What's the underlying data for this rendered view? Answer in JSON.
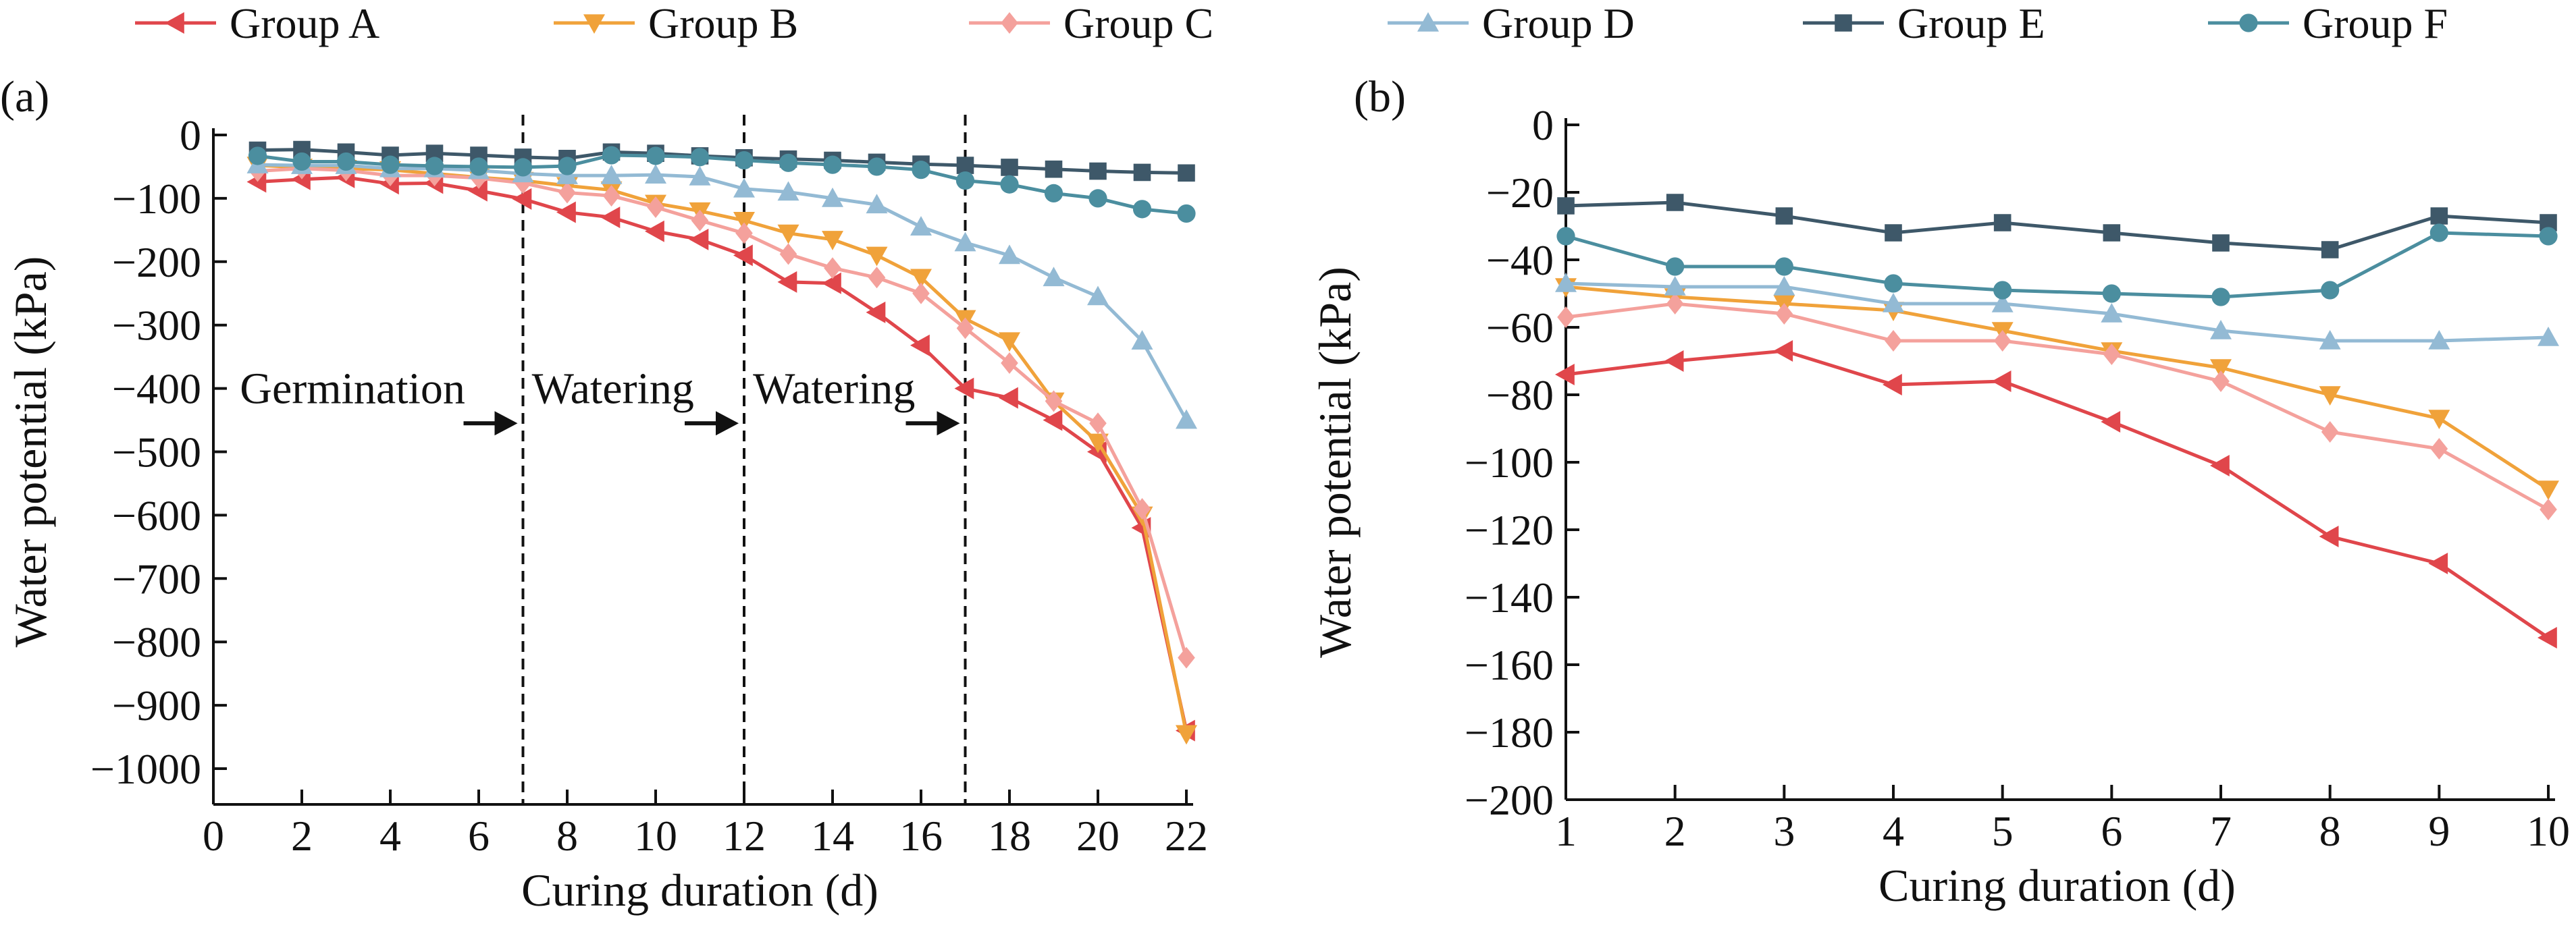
{
  "legend": {
    "position": "top",
    "entries": [
      {
        "name": "Group A",
        "color": "#e0464b",
        "marker": "triangle-left"
      },
      {
        "name": "Group B",
        "color": "#f0a23a",
        "marker": "triangle-down"
      },
      {
        "name": "Group C",
        "color": "#f4a19c",
        "marker": "diamond"
      },
      {
        "name": "Group D",
        "color": "#93bad4",
        "marker": "triangle-up"
      },
      {
        "name": "Group E",
        "color": "#3e5869",
        "marker": "square"
      },
      {
        "name": "Group F",
        "color": "#4b8e9f",
        "marker": "circle"
      }
    ]
  },
  "chart_data": [
    {
      "type": "line",
      "panel_label": "(a)",
      "xlabel": "Curing duration (d)",
      "ylabel": "Water potential (kPa)",
      "xlim": [
        0,
        22
      ],
      "ylim": [
        -1000,
        0
      ],
      "xticks": [
        0,
        2,
        4,
        6,
        8,
        10,
        12,
        14,
        16,
        18,
        20,
        22
      ],
      "yticks": [
        0,
        -100,
        -200,
        -300,
        -400,
        -500,
        -600,
        -700,
        -800,
        -900,
        -1000
      ],
      "grid": false,
      "x": [
        1,
        2,
        3,
        4,
        5,
        6,
        7,
        8,
        9,
        10,
        11,
        12,
        13,
        14,
        15,
        16,
        17,
        18,
        19,
        20,
        21,
        22
      ],
      "series": [
        {
          "name": "Group A",
          "values": [
            -74,
            -70,
            -67,
            -77,
            -76,
            -88,
            -101,
            -122,
            -130,
            -152,
            -165,
            -190,
            -232,
            -234,
            -280,
            -332,
            -400,
            -415,
            -450,
            -500,
            -620,
            -940
          ]
        },
        {
          "name": "Group B",
          "values": [
            -48,
            -51,
            -53,
            -55,
            -61,
            -67,
            -72,
            -80,
            -87,
            -108,
            -120,
            -135,
            -155,
            -165,
            -190,
            -225,
            -290,
            -325,
            -420,
            -485,
            -600,
            -945
          ]
        },
        {
          "name": "Group C",
          "values": [
            -57,
            -53,
            -56,
            -64,
            -64,
            -68,
            -76,
            -91,
            -96,
            -114,
            -135,
            -155,
            -188,
            -210,
            -225,
            -250,
            -305,
            -360,
            -420,
            -455,
            -590,
            -825
          ]
        },
        {
          "name": "Group D",
          "values": [
            -47,
            -48,
            -48,
            -53,
            -53,
            -56,
            -61,
            -64,
            -64,
            -63,
            -66,
            -85,
            -90,
            -100,
            -110,
            -145,
            -170,
            -190,
            -225,
            -255,
            -325,
            -450
          ]
        },
        {
          "name": "Group E",
          "values": [
            -24,
            -23,
            -27,
            -32,
            -29,
            -32,
            -35,
            -37,
            -27,
            -29,
            -33,
            -36,
            -38,
            -40,
            -43,
            -46,
            -48,
            -51,
            -54,
            -57,
            -59,
            -60
          ]
        },
        {
          "name": "Group F",
          "values": [
            -33,
            -42,
            -42,
            -47,
            -49,
            -50,
            -51,
            -49,
            -32,
            -33,
            -35,
            -40,
            -44,
            -47,
            -50,
            -55,
            -72,
            -78,
            -92,
            -100,
            -117,
            -124
          ]
        }
      ],
      "annotations": [
        {
          "text": "Germination",
          "x": 7
        },
        {
          "text": "Watering",
          "x": 12
        },
        {
          "text": "Watering",
          "x": 17
        }
      ],
      "vertical_dashed_lines": [
        7,
        12,
        17
      ]
    },
    {
      "type": "line",
      "panel_label": "(b)",
      "xlabel": "Curing duration (d)",
      "ylabel": "Water potential (kPa)",
      "xlim": [
        1,
        10
      ],
      "ylim": [
        -200,
        0
      ],
      "xticks": [
        1,
        2,
        3,
        4,
        5,
        6,
        7,
        8,
        9,
        10
      ],
      "yticks": [
        0,
        -20,
        -40,
        -60,
        -80,
        -100,
        -120,
        -140,
        -160,
        -180,
        -200
      ],
      "grid": false,
      "x": [
        1,
        2,
        3,
        4,
        5,
        6,
        7,
        8,
        9,
        10
      ],
      "series": [
        {
          "name": "Group A",
          "values": [
            -74,
            -70,
            -67,
            -77,
            -76,
            -88,
            -101,
            -122,
            -130,
            -152
          ]
        },
        {
          "name": "Group B",
          "values": [
            -48,
            -51,
            -53,
            -55,
            -61,
            -67,
            -72,
            -80,
            -87,
            -108
          ]
        },
        {
          "name": "Group C",
          "values": [
            -57,
            -53,
            -56,
            -64,
            -64,
            -68,
            -76,
            -91,
            -96,
            -114
          ]
        },
        {
          "name": "Group D",
          "values": [
            -47,
            -48,
            -48,
            -53,
            -53,
            -56,
            -61,
            -64,
            -64,
            -63
          ]
        },
        {
          "name": "Group E",
          "values": [
            -24,
            -23,
            -27,
            -32,
            -29,
            -32,
            -35,
            -37,
            -27,
            -29
          ]
        },
        {
          "name": "Group F",
          "values": [
            -33,
            -42,
            -42,
            -47,
            -49,
            -50,
            -51,
            -49,
            -32,
            -33
          ]
        }
      ]
    }
  ]
}
